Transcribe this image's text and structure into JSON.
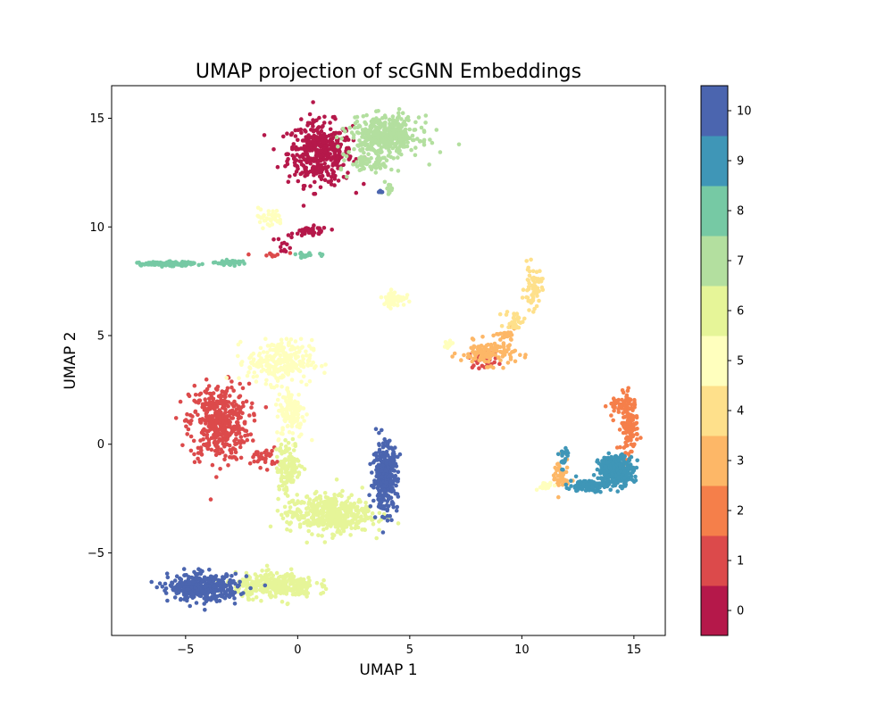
{
  "chart_data": {
    "type": "scatter",
    "title": "UMAP projection of scGNN Embeddings",
    "xlabel": "UMAP 1",
    "ylabel": "UMAP 2",
    "xlim": [
      -8.3,
      16.4
    ],
    "ylim": [
      -8.8,
      16.5
    ],
    "xticks": [
      -5,
      0,
      5,
      10,
      15
    ],
    "yticks": [
      -5,
      0,
      5,
      10,
      15
    ],
    "xtick_labels": [
      "−5",
      "0",
      "5",
      "10",
      "15"
    ],
    "ytick_labels": [
      "−5",
      "0",
      "5",
      "10",
      "15"
    ],
    "grid": false,
    "colorbar": {
      "labels": [
        "0",
        "1",
        "2",
        "3",
        "4",
        "5",
        "6",
        "7",
        "8",
        "9",
        "10"
      ],
      "colors": [
        "#b5184a",
        "#dc4a4b",
        "#f57f4a",
        "#fdb767",
        "#fee08b",
        "#ffffbe",
        "#e6f598",
        "#b3df9f",
        "#76c9a4",
        "#3f96b7",
        "#4b65af"
      ]
    },
    "clusters": [
      {
        "label": "0",
        "color": "#b5184a",
        "segments": [
          {
            "center": [
              1.0,
              13.4
            ],
            "spread": [
              1.3,
              1.3
            ],
            "n": 420
          },
          {
            "center": [
              0.6,
              9.8
            ],
            "spread": [
              0.7,
              0.2
            ],
            "n": 45
          },
          {
            "center": [
              -0.6,
              9.2
            ],
            "spread": [
              0.3,
              0.4
            ],
            "n": 12
          }
        ]
      },
      {
        "label": "1",
        "color": "#dc4a4b",
        "segments": [
          {
            "center": [
              -3.5,
              1.0
            ],
            "spread": [
              1.2,
              1.6
            ],
            "n": 430
          },
          {
            "center": [
              -1.5,
              -0.6
            ],
            "spread": [
              0.5,
              0.4
            ],
            "n": 30
          },
          {
            "center": [
              8.3,
              3.9
            ],
            "spread": [
              0.6,
              0.35
            ],
            "n": 35
          },
          {
            "center": [
              -1.2,
              8.7
            ],
            "spread": [
              0.6,
              0.15
            ],
            "n": 10
          }
        ]
      },
      {
        "label": "2",
        "color": "#f57f4a",
        "segments": [
          {
            "center": [
              14.8,
              1.0
            ],
            "spread": [
              0.35,
              1.2
            ],
            "n": 150
          },
          {
            "center": [
              14.2,
              1.8
            ],
            "spread": [
              0.35,
              0.4
            ],
            "n": 25
          }
        ]
      },
      {
        "label": "3",
        "color": "#fdb767",
        "segments": [
          {
            "center": [
              8.5,
              4.2
            ],
            "spread": [
              1.1,
              0.5
            ],
            "n": 120
          },
          {
            "center": [
              9.3,
              5.0
            ],
            "spread": [
              0.4,
              0.25
            ],
            "n": 25
          },
          {
            "center": [
              11.7,
              -1.5
            ],
            "spread": [
              0.35,
              0.8
            ],
            "n": 45
          }
        ]
      },
      {
        "label": "4",
        "color": "#fee08b",
        "segments": [
          {
            "center": [
              10.5,
              7.2
            ],
            "spread": [
              0.35,
              0.9
            ],
            "n": 60
          },
          {
            "center": [
              9.7,
              5.7
            ],
            "spread": [
              0.4,
              0.4
            ],
            "n": 30
          }
        ]
      },
      {
        "label": "5",
        "color": "#ffffbe",
        "segments": [
          {
            "center": [
              -0.8,
              3.8
            ],
            "spread": [
              1.3,
              0.9
            ],
            "n": 260
          },
          {
            "center": [
              -0.3,
              1.5
            ],
            "spread": [
              0.6,
              1.1
            ],
            "n": 120
          },
          {
            "center": [
              4.3,
              6.7
            ],
            "spread": [
              0.45,
              0.3
            ],
            "n": 70
          },
          {
            "center": [
              -1.3,
              10.4
            ],
            "spread": [
              0.6,
              0.4
            ],
            "n": 35
          },
          {
            "center": [
              6.7,
              4.6
            ],
            "spread": [
              0.3,
              0.2
            ],
            "n": 15
          },
          {
            "center": [
              11.0,
              -1.9
            ],
            "spread": [
              0.4,
              0.15
            ],
            "n": 15
          }
        ]
      },
      {
        "label": "6",
        "color": "#e6f598",
        "segments": [
          {
            "center": [
              1.4,
              -3.2
            ],
            "spread": [
              1.7,
              0.8
            ],
            "n": 460
          },
          {
            "center": [
              -0.4,
              -1.0
            ],
            "spread": [
              0.5,
              1.0
            ],
            "n": 130
          },
          {
            "center": [
              -1.0,
              -6.5
            ],
            "spread": [
              1.6,
              0.5
            ],
            "n": 330
          }
        ]
      },
      {
        "label": "7",
        "color": "#b3df9f",
        "segments": [
          {
            "center": [
              3.9,
              14.2
            ],
            "spread": [
              1.4,
              0.8
            ],
            "n": 420
          },
          {
            "center": [
              3.3,
              12.9
            ],
            "spread": [
              0.9,
              0.4
            ],
            "n": 60
          },
          {
            "center": [
              4.0,
              11.8
            ],
            "spread": [
              0.3,
              0.5
            ],
            "n": 15
          }
        ]
      },
      {
        "label": "8",
        "color": "#76c9a4",
        "segments": [
          {
            "center": [
              -5.8,
              8.3
            ],
            "spread": [
              1.1,
              0.08
            ],
            "n": 150
          },
          {
            "center": [
              -3.0,
              8.35
            ],
            "spread": [
              0.6,
              0.1
            ],
            "n": 40
          },
          {
            "center": [
              0.4,
              8.7
            ],
            "spread": [
              0.5,
              0.1
            ],
            "n": 20
          }
        ]
      },
      {
        "label": "9",
        "color": "#3f96b7",
        "segments": [
          {
            "center": [
              14.2,
              -1.2
            ],
            "spread": [
              0.7,
              0.6
            ],
            "n": 350
          },
          {
            "center": [
              12.9,
              -1.9
            ],
            "spread": [
              0.7,
              0.25
            ],
            "n": 110
          },
          {
            "center": [
              11.9,
              -0.6
            ],
            "spread": [
              0.25,
              0.5
            ],
            "n": 20
          }
        ]
      },
      {
        "label": "10",
        "color": "#4b65af",
        "segments": [
          {
            "center": [
              3.9,
              -1.5
            ],
            "spread": [
              0.5,
              1.4
            ],
            "n": 330
          },
          {
            "center": [
              -4.2,
              -6.6
            ],
            "spread": [
              1.4,
              0.55
            ],
            "n": 380
          },
          {
            "center": [
              3.7,
              11.6
            ],
            "spread": [
              0.15,
              0.1
            ],
            "n": 5
          }
        ]
      }
    ]
  }
}
